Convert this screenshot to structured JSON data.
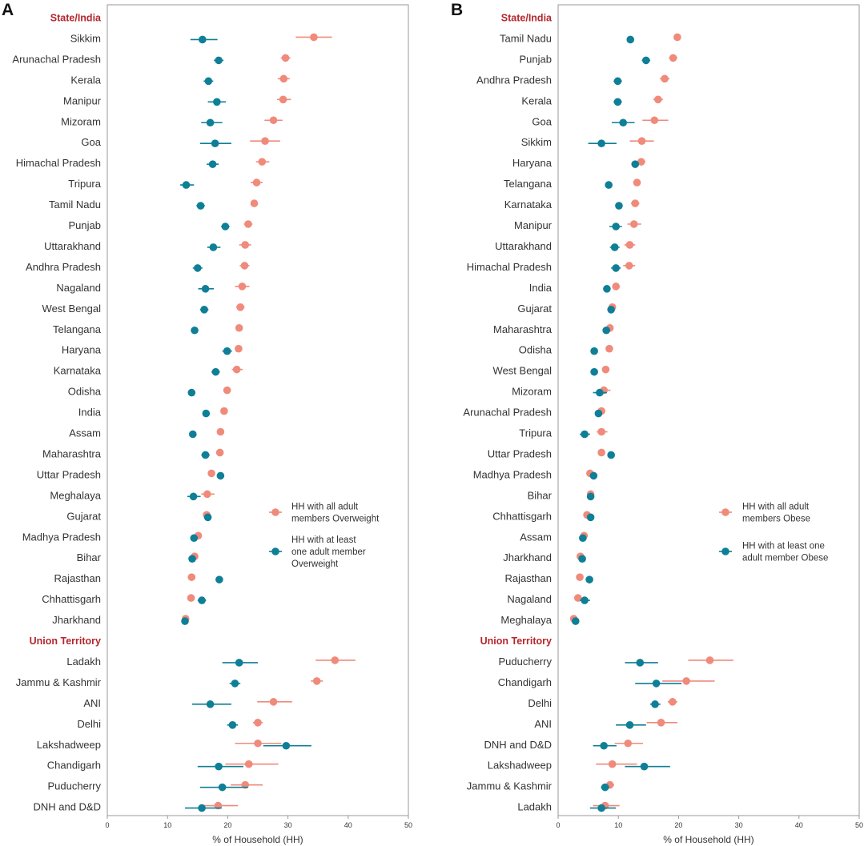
{
  "colors": {
    "primary": "#F08A7B",
    "secondary": "#0E7F96",
    "heading": "#B3272E",
    "frame": "#999999"
  },
  "chart_data": [
    {
      "type": "scatter",
      "panel": "A",
      "xlabel": "% of Household (HH)",
      "xlim": [
        0,
        50
      ],
      "xticks": [
        0,
        10,
        20,
        30,
        40,
        50
      ],
      "grid": false,
      "legend_position": "center-right",
      "sections": [
        {
          "heading": "State/India",
          "rows": [
            {
              "label": "Sikkim",
              "a": 34.3,
              "a_lo": 31.3,
              "a_hi": 37.3,
              "b": 15.8,
              "b_lo": 13.8,
              "b_hi": 18.3
            },
            {
              "label": "Arunachal Pradesh",
              "a": 29.6,
              "a_lo": 28.8,
              "a_hi": 30.4,
              "b": 18.5,
              "b_lo": 17.7,
              "b_hi": 19.3
            },
            {
              "label": "Kerala",
              "a": 29.3,
              "a_lo": 28.3,
              "a_hi": 30.3,
              "b": 16.8,
              "b_lo": 16.0,
              "b_hi": 17.6
            },
            {
              "label": "Manipur",
              "a": 29.2,
              "a_lo": 28.2,
              "a_hi": 30.5,
              "b": 18.2,
              "b_lo": 16.7,
              "b_hi": 19.7
            },
            {
              "label": "Mizoram",
              "a": 27.6,
              "a_lo": 26.1,
              "a_hi": 29.1,
              "b": 17.1,
              "b_lo": 15.6,
              "b_hi": 19.1
            },
            {
              "label": "Goa",
              "a": 26.2,
              "a_lo": 23.7,
              "a_hi": 28.7,
              "b": 17.9,
              "b_lo": 15.4,
              "b_hi": 20.6
            },
            {
              "label": "Himachal Pradesh",
              "a": 25.7,
              "a_lo": 24.7,
              "a_hi": 26.9,
              "b": 17.5,
              "b_lo": 16.5,
              "b_hi": 18.5
            },
            {
              "label": "Tripura",
              "a": 24.8,
              "a_lo": 23.8,
              "a_hi": 25.8,
              "b": 13.1,
              "b_lo": 12.1,
              "b_hi": 14.4
            },
            {
              "label": "Tamil Nadu",
              "a": 24.4,
              "a_lo": 23.8,
              "a_hi": 25.0,
              "b": 15.5,
              "b_lo": 14.8,
              "b_hi": 16.2
            },
            {
              "label": "Punjab",
              "a": 23.4,
              "a_lo": 22.7,
              "a_hi": 24.1,
              "b": 19.6,
              "b_lo": 18.9,
              "b_hi": 20.3
            },
            {
              "label": "Uttarakhand",
              "a": 22.9,
              "a_lo": 21.9,
              "a_hi": 23.9,
              "b": 17.6,
              "b_lo": 16.6,
              "b_hi": 18.8
            },
            {
              "label": "Andhra Pradesh",
              "a": 22.8,
              "a_lo": 22.0,
              "a_hi": 23.6,
              "b": 15.0,
              "b_lo": 14.2,
              "b_hi": 15.8
            },
            {
              "label": "Nagaland",
              "a": 22.4,
              "a_lo": 21.2,
              "a_hi": 23.6,
              "b": 16.3,
              "b_lo": 15.1,
              "b_hi": 17.7
            },
            {
              "label": "West Bengal",
              "a": 22.1,
              "a_lo": 21.4,
              "a_hi": 22.8,
              "b": 16.1,
              "b_lo": 15.4,
              "b_hi": 16.8
            },
            {
              "label": "Telangana",
              "a": 21.9,
              "a_lo": 21.4,
              "a_hi": 22.4,
              "b": 14.5,
              "b_lo": 14.0,
              "b_hi": 15.0
            },
            {
              "label": "Haryana",
              "a": 21.8,
              "a_lo": 21.2,
              "a_hi": 22.4,
              "b": 19.9,
              "b_lo": 19.1,
              "b_hi": 20.7
            },
            {
              "label": "Karnataka",
              "a": 21.5,
              "a_lo": 20.7,
              "a_hi": 22.5,
              "b": 18.0,
              "b_lo": 17.3,
              "b_hi": 18.7
            },
            {
              "label": "Odisha",
              "a": 19.9,
              "a_lo": 19.4,
              "a_hi": 20.4,
              "b": 14.0,
              "b_lo": 13.5,
              "b_hi": 14.5
            },
            {
              "label": "India",
              "a": 19.4,
              "a_lo": 19.1,
              "a_hi": 19.7,
              "b": 16.4,
              "b_lo": 16.1,
              "b_hi": 16.7
            },
            {
              "label": "Assam",
              "a": 18.8,
              "a_lo": 18.3,
              "a_hi": 19.3,
              "b": 14.2,
              "b_lo": 13.7,
              "b_hi": 14.7
            },
            {
              "label": "Maharashtra",
              "a": 18.7,
              "a_lo": 18.1,
              "a_hi": 19.3,
              "b": 16.3,
              "b_lo": 15.6,
              "b_hi": 17.0
            },
            {
              "label": "Uttar Pradesh",
              "a": 17.3,
              "a_lo": 17.0,
              "a_hi": 17.6,
              "b": 18.8,
              "b_lo": 18.5,
              "b_hi": 19.1
            },
            {
              "label": "Meghalaya",
              "a": 16.6,
              "a_lo": 15.6,
              "a_hi": 17.8,
              "b": 14.3,
              "b_lo": 13.3,
              "b_hi": 15.5
            },
            {
              "label": "Gujarat",
              "a": 16.5,
              "a_lo": 16.0,
              "a_hi": 17.0,
              "b": 16.7,
              "b_lo": 16.2,
              "b_hi": 17.2
            },
            {
              "label": "Madhya Pradesh",
              "a": 15.1,
              "a_lo": 14.7,
              "a_hi": 15.5,
              "b": 14.4,
              "b_lo": 14.0,
              "b_hi": 14.8
            },
            {
              "label": "Bihar",
              "a": 14.5,
              "a_lo": 14.1,
              "a_hi": 14.9,
              "b": 14.1,
              "b_lo": 13.7,
              "b_hi": 14.5
            },
            {
              "label": "Rajasthan",
              "a": 14.0,
              "a_lo": 13.6,
              "a_hi": 14.4,
              "b": 18.6,
              "b_lo": 18.2,
              "b_hi": 19.0
            },
            {
              "label": "Chhattisgarh",
              "a": 13.9,
              "a_lo": 13.4,
              "a_hi": 14.4,
              "b": 15.7,
              "b_lo": 15.0,
              "b_hi": 16.4
            },
            {
              "label": "Jharkhand",
              "a": 13.0,
              "a_lo": 12.5,
              "a_hi": 13.5,
              "b": 12.9,
              "b_lo": 12.4,
              "b_hi": 13.4
            }
          ]
        },
        {
          "heading": "Union Territory",
          "rows": [
            {
              "label": "Ladakh",
              "a": 37.8,
              "a_lo": 34.6,
              "a_hi": 41.2,
              "b": 21.9,
              "b_lo": 19.1,
              "b_hi": 25.0
            },
            {
              "label": "Jammu & Kashmir",
              "a": 34.8,
              "a_lo": 33.8,
              "a_hi": 35.8,
              "b": 21.2,
              "b_lo": 20.3,
              "b_hi": 22.1
            },
            {
              "label": "ANI",
              "a": 27.6,
              "a_lo": 24.9,
              "a_hi": 30.7,
              "b": 17.1,
              "b_lo": 14.1,
              "b_hi": 20.6
            },
            {
              "label": "Delhi",
              "a": 25.0,
              "a_lo": 24.2,
              "a_hi": 25.8,
              "b": 20.8,
              "b_lo": 19.9,
              "b_hi": 21.7
            },
            {
              "label": "Lakshadweep",
              "a": 25.0,
              "a_lo": 21.2,
              "a_hi": 28.9,
              "b": 29.7,
              "b_lo": 25.9,
              "b_hi": 33.9
            },
            {
              "label": "Chandigarh",
              "a": 23.5,
              "a_lo": 19.6,
              "a_hi": 28.4,
              "b": 18.5,
              "b_lo": 15.0,
              "b_hi": 22.6
            },
            {
              "label": "Puducherry",
              "a": 22.9,
              "a_lo": 20.5,
              "a_hi": 25.8,
              "b": 19.1,
              "b_lo": 15.4,
              "b_hi": 23.4
            },
            {
              "label": "DNH and D&D",
              "a": 18.4,
              "a_lo": 15.3,
              "a_hi": 21.7,
              "b": 15.7,
              "b_lo": 12.9,
              "b_hi": 19.0
            }
          ]
        }
      ],
      "series": [
        {
          "key": "a",
          "name": "HH with all adult members Overweight",
          "legend_lines": [
            "HH with all adult",
            "members Overweight"
          ]
        },
        {
          "key": "b",
          "name": "HH with at least one adult member Overweight",
          "legend_lines": [
            "HH with at least",
            "one adult member",
            "Overweight"
          ]
        }
      ]
    },
    {
      "type": "scatter",
      "panel": "B",
      "xlabel": "% of Household (HH)",
      "xlim": [
        0,
        50
      ],
      "xticks": [
        0,
        10,
        20,
        30,
        40,
        50
      ],
      "grid": false,
      "legend_position": "center-right",
      "sections": [
        {
          "heading": "State/India",
          "rows": [
            {
              "label": "Tamil Nadu",
              "a": 19.8,
              "a_lo": 19.3,
              "a_hi": 20.3,
              "b": 12.0,
              "b_lo": 11.5,
              "b_hi": 12.5
            },
            {
              "label": "Punjab",
              "a": 19.1,
              "a_lo": 18.4,
              "a_hi": 19.8,
              "b": 14.6,
              "b_lo": 13.9,
              "b_hi": 15.3
            },
            {
              "label": "Andhra Pradesh",
              "a": 17.7,
              "a_lo": 16.9,
              "a_hi": 18.5,
              "b": 9.9,
              "b_lo": 9.2,
              "b_hi": 10.6
            },
            {
              "label": "Kerala",
              "a": 16.6,
              "a_lo": 15.8,
              "a_hi": 17.4,
              "b": 9.9,
              "b_lo": 9.2,
              "b_hi": 10.6
            },
            {
              "label": "Goa",
              "a": 16.0,
              "a_lo": 14.0,
              "a_hi": 18.3,
              "b": 10.8,
              "b_lo": 8.9,
              "b_hi": 12.7
            },
            {
              "label": "Sikkim",
              "a": 13.9,
              "a_lo": 11.9,
              "a_hi": 15.9,
              "b": 7.2,
              "b_lo": 5.0,
              "b_hi": 9.7
            },
            {
              "label": "Haryana",
              "a": 13.8,
              "a_lo": 13.2,
              "a_hi": 14.5,
              "b": 12.8,
              "b_lo": 12.2,
              "b_hi": 13.4
            },
            {
              "label": "Telangana",
              "a": 13.1,
              "a_lo": 12.5,
              "a_hi": 13.7,
              "b": 8.4,
              "b_lo": 7.9,
              "b_hi": 8.9
            },
            {
              "label": "Karnataka",
              "a": 12.8,
              "a_lo": 12.1,
              "a_hi": 13.5,
              "b": 10.1,
              "b_lo": 9.5,
              "b_hi": 10.7
            },
            {
              "label": "Manipur",
              "a": 12.6,
              "a_lo": 11.5,
              "a_hi": 13.8,
              "b": 9.6,
              "b_lo": 8.5,
              "b_hi": 10.6
            },
            {
              "label": "Uttarakhand",
              "a": 11.9,
              "a_lo": 11.0,
              "a_hi": 12.8,
              "b": 9.4,
              "b_lo": 8.6,
              "b_hi": 10.2
            },
            {
              "label": "Himachal Pradesh",
              "a": 11.8,
              "a_lo": 10.8,
              "a_hi": 12.8,
              "b": 9.6,
              "b_lo": 8.8,
              "b_hi": 10.4
            },
            {
              "label": "India",
              "a": 9.6,
              "a_lo": 9.4,
              "a_hi": 9.8,
              "b": 8.1,
              "b_lo": 7.9,
              "b_hi": 8.3
            },
            {
              "label": "Gujarat",
              "a": 9.0,
              "a_lo": 8.5,
              "a_hi": 9.5,
              "b": 8.8,
              "b_lo": 8.3,
              "b_hi": 9.3
            },
            {
              "label": "Maharashtra",
              "a": 8.6,
              "a_lo": 8.0,
              "a_hi": 9.2,
              "b": 8.0,
              "b_lo": 7.4,
              "b_hi": 8.6
            },
            {
              "label": "Odisha",
              "a": 8.5,
              "a_lo": 8.0,
              "a_hi": 9.0,
              "b": 6.0,
              "b_lo": 5.6,
              "b_hi": 6.4
            },
            {
              "label": "West Bengal",
              "a": 7.9,
              "a_lo": 7.4,
              "a_hi": 8.4,
              "b": 6.0,
              "b_lo": 5.6,
              "b_hi": 6.4
            },
            {
              "label": "Mizoram",
              "a": 7.6,
              "a_lo": 6.6,
              "a_hi": 8.7,
              "b": 6.9,
              "b_lo": 5.8,
              "b_hi": 8.1
            },
            {
              "label": "Arunachal Pradesh",
              "a": 7.2,
              "a_lo": 6.6,
              "a_hi": 7.8,
              "b": 6.7,
              "b_lo": 6.1,
              "b_hi": 7.3
            },
            {
              "label": "Tripura",
              "a": 7.2,
              "a_lo": 6.4,
              "a_hi": 8.2,
              "b": 4.4,
              "b_lo": 3.6,
              "b_hi": 5.3
            },
            {
              "label": "Uttar Pradesh",
              "a": 7.2,
              "a_lo": 6.9,
              "a_hi": 7.5,
              "b": 8.8,
              "b_lo": 8.5,
              "b_hi": 9.1
            },
            {
              "label": "Madhya Pradesh",
              "a": 5.3,
              "a_lo": 4.9,
              "a_hi": 5.7,
              "b": 5.9,
              "b_lo": 5.5,
              "b_hi": 6.3
            },
            {
              "label": "Bihar",
              "a": 5.4,
              "a_lo": 5.0,
              "a_hi": 5.8,
              "b": 5.4,
              "b_lo": 5.0,
              "b_hi": 5.8
            },
            {
              "label": "Chhattisgarh",
              "a": 4.8,
              "a_lo": 4.3,
              "a_hi": 5.3,
              "b": 5.4,
              "b_lo": 4.9,
              "b_hi": 5.9
            },
            {
              "label": "Assam",
              "a": 4.3,
              "a_lo": 3.9,
              "a_hi": 4.7,
              "b": 4.1,
              "b_lo": 3.7,
              "b_hi": 4.5
            },
            {
              "label": "Jharkhand",
              "a": 3.7,
              "a_lo": 3.3,
              "a_hi": 4.1,
              "b": 4.0,
              "b_lo": 3.6,
              "b_hi": 4.4
            },
            {
              "label": "Rajasthan",
              "a": 3.6,
              "a_lo": 3.2,
              "a_hi": 4.0,
              "b": 5.2,
              "b_lo": 4.8,
              "b_hi": 5.6
            },
            {
              "label": "Nagaland",
              "a": 3.3,
              "a_lo": 2.7,
              "a_hi": 3.9,
              "b": 4.4,
              "b_lo": 3.6,
              "b_hi": 5.3
            },
            {
              "label": "Meghalaya",
              "a": 2.6,
              "a_lo": 2.0,
              "a_hi": 3.2,
              "b": 2.9,
              "b_lo": 2.3,
              "b_hi": 3.5
            }
          ]
        },
        {
          "heading": "Union Territory",
          "rows": [
            {
              "label": "Puducherry",
              "a": 25.2,
              "a_lo": 21.6,
              "a_hi": 29.1,
              "b": 13.6,
              "b_lo": 11.1,
              "b_hi": 16.6
            },
            {
              "label": "Chandigarh",
              "a": 21.3,
              "a_lo": 17.3,
              "a_hi": 26.0,
              "b": 16.3,
              "b_lo": 12.8,
              "b_hi": 20.5
            },
            {
              "label": "Delhi",
              "a": 19.0,
              "a_lo": 18.2,
              "a_hi": 19.8,
              "b": 16.1,
              "b_lo": 15.3,
              "b_hi": 17.0
            },
            {
              "label": "ANI",
              "a": 17.1,
              "a_lo": 14.7,
              "a_hi": 19.8,
              "b": 11.9,
              "b_lo": 9.6,
              "b_hi": 14.6
            },
            {
              "label": "DNH and D&D",
              "a": 11.6,
              "a_lo": 9.4,
              "a_hi": 14.1,
              "b": 7.6,
              "b_lo": 5.8,
              "b_hi": 9.7
            },
            {
              "label": "Lakshadweep",
              "a": 9.0,
              "a_lo": 6.3,
              "a_hi": 13.1,
              "b": 14.3,
              "b_lo": 11.1,
              "b_hi": 18.6
            },
            {
              "label": "Jammu & Kashmir",
              "a": 8.6,
              "a_lo": 7.9,
              "a_hi": 9.3,
              "b": 7.8,
              "b_lo": 7.1,
              "b_hi": 8.5
            },
            {
              "label": "Ladakh",
              "a": 7.8,
              "a_lo": 5.8,
              "a_hi": 10.2,
              "b": 7.2,
              "b_lo": 5.3,
              "b_hi": 9.6
            }
          ]
        }
      ],
      "series": [
        {
          "key": "a",
          "name": "HH with all adult members Obese",
          "legend_lines": [
            "HH with all adult",
            "members Obese"
          ]
        },
        {
          "key": "b",
          "name": "HH with at least one adult member Obese",
          "legend_lines": [
            "HH with at least one",
            "adult member Obese"
          ]
        }
      ]
    }
  ]
}
